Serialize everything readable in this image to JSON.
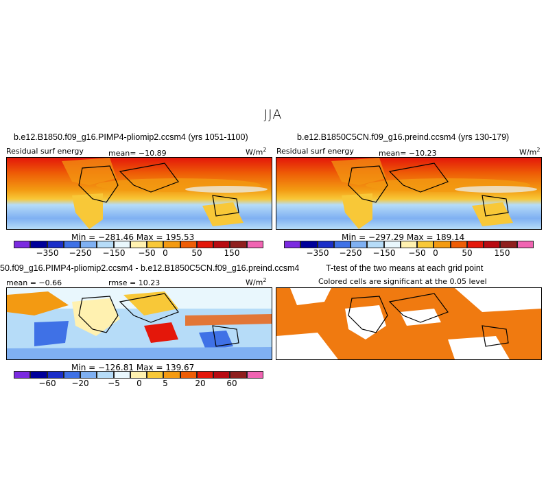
{
  "season_title": "JJA",
  "palette": [
    "#7b2be0",
    "#00009a",
    "#1a2ec8",
    "#3f71e6",
    "#7fb0f2",
    "#b6dcf8",
    "#e9f7fd",
    "#fff1b0",
    "#f8c838",
    "#f39a12",
    "#ee5d06",
    "#e4170a",
    "#b80b12",
    "#8f1f1e",
    "#f064b2"
  ],
  "panels": {
    "model1": {
      "title": "b.e12.B1850.f09_g16.PIMP4-pliomip2.ccsm4 (yrs 1051-1100)",
      "variable": "Residual surf energy",
      "stat": "mean= −10.89",
      "units": "W/m",
      "units_exp": "2",
      "minmax": "Min = −281.46  Max = 195.53",
      "ticks": [
        "−350",
        "−250",
        "−150",
        "−50",
        "0",
        "50",
        "150"
      ]
    },
    "model2": {
      "title": "b.e12.B1850C5CN.f09_g16.preind.ccsm4 (yrs 130-179)",
      "variable": "Residual surf energy",
      "stat": "mean= −10.23",
      "units": "W/m",
      "units_exp": "2",
      "minmax": "Min = −297.29  Max = 189.14",
      "ticks": [
        "−350",
        "−250",
        "−150",
        "−50",
        "0",
        "50",
        "150"
      ]
    },
    "diff": {
      "title": "50.f09_g16.PIMP4-pliomip2.ccsm4 - b.e12.B1850C5CN.f09_g16.preind.ccsm4",
      "mean": "mean = −0.66",
      "rmse": "rmse = 10.23",
      "units": "W/m",
      "units_exp": "2",
      "minmax": "Min = −126.81  Max = 139.67",
      "ticks": [
        "−60",
        "−20",
        "−5",
        "0",
        "5",
        "20",
        "60"
      ]
    },
    "ttest": {
      "title": "T-test of the two means at each grid point",
      "subtitle": "Colored cells are significant at the 0.05 level",
      "color": "#f07a10"
    }
  }
}
